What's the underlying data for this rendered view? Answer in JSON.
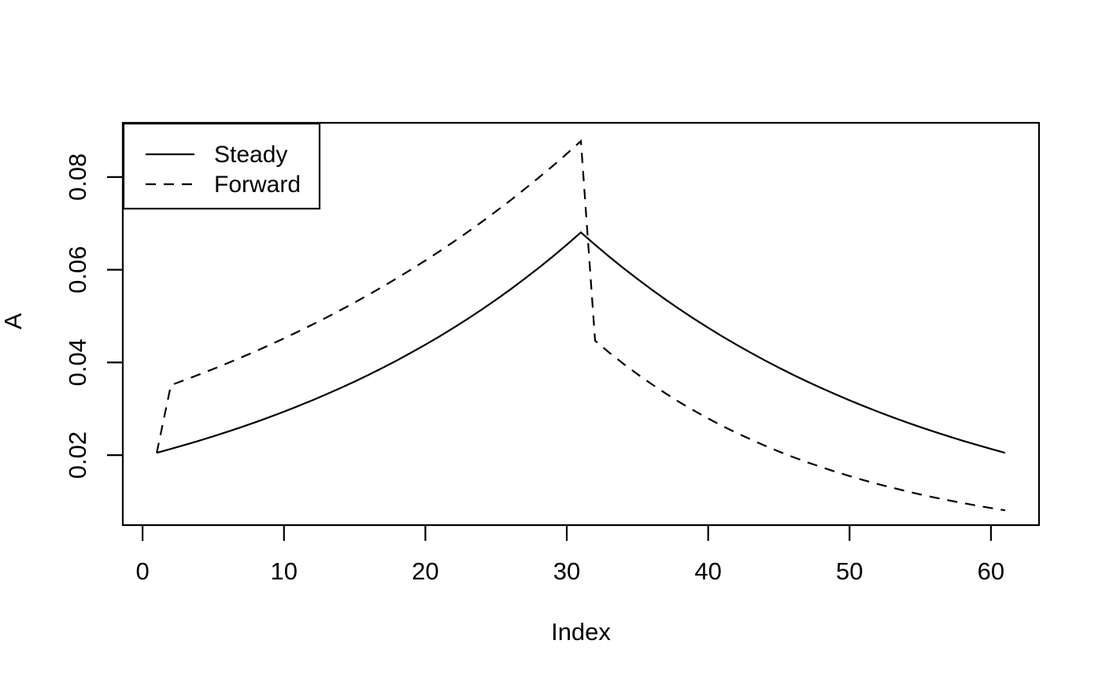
{
  "figure": {
    "background_color": "#ffffff",
    "foreground_color": "#000000"
  },
  "chart_data": {
    "type": "line",
    "title": "",
    "xlabel": "Index",
    "ylabel": "A",
    "grid": false,
    "xlim": [
      -1.4,
      63.4
    ],
    "ylim": [
      0.0049,
      0.0917
    ],
    "xticks": [
      0,
      10,
      20,
      30,
      40,
      50,
      60
    ],
    "xtick_labels": [
      "0",
      "10",
      "20",
      "30",
      "40",
      "50",
      "60"
    ],
    "yticks": [
      0.02,
      0.04,
      0.06,
      0.08
    ],
    "ytick_labels": [
      "0.02",
      "0.04",
      "0.06",
      "0.08"
    ],
    "legend": {
      "position": "topleft",
      "entries": [
        {
          "label": "Steady",
          "line_style": "solid"
        },
        {
          "label": "Forward",
          "line_style": "dashed"
        }
      ]
    },
    "x": [
      1,
      2,
      3,
      4,
      5,
      6,
      7,
      8,
      9,
      10,
      11,
      12,
      13,
      14,
      15,
      16,
      17,
      18,
      19,
      20,
      21,
      22,
      23,
      24,
      25,
      26,
      27,
      28,
      29,
      30,
      31,
      32,
      33,
      34,
      35,
      36,
      37,
      38,
      39,
      40,
      41,
      42,
      43,
      44,
      45,
      46,
      47,
      48,
      49,
      50,
      51,
      52,
      53,
      54,
      55,
      56,
      57,
      58,
      59,
      60,
      61
    ],
    "series": [
      {
        "name": "Steady",
        "style": "solid",
        "color": "#000000",
        "values": [
          0.0205,
          0.02134,
          0.02221,
          0.02311,
          0.02406,
          0.02504,
          0.02606,
          0.02712,
          0.02823,
          0.02938,
          0.03058,
          0.03183,
          0.03313,
          0.03448,
          0.03589,
          0.03735,
          0.03888,
          0.04046,
          0.04211,
          0.04383,
          0.04562,
          0.04748,
          0.04942,
          0.05144,
          0.05354,
          0.05572,
          0.058,
          0.06036,
          0.06282,
          0.06539,
          0.06806,
          0.06539,
          0.06282,
          0.06036,
          0.058,
          0.05572,
          0.05354,
          0.05144,
          0.04942,
          0.04748,
          0.04562,
          0.04383,
          0.04211,
          0.04046,
          0.03888,
          0.03735,
          0.03589,
          0.03448,
          0.03313,
          0.03183,
          0.03058,
          0.02938,
          0.02823,
          0.02712,
          0.02606,
          0.02504,
          0.02406,
          0.02311,
          0.02221,
          0.02134,
          0.0205
        ]
      },
      {
        "name": "Forward",
        "style": "dashed",
        "color": "#000000",
        "values": [
          0.0205,
          0.0351,
          0.03623,
          0.03739,
          0.03859,
          0.03983,
          0.04111,
          0.04243,
          0.04379,
          0.0452,
          0.04665,
          0.04815,
          0.04969,
          0.05129,
          0.05293,
          0.05463,
          0.05639,
          0.0582,
          0.06006,
          0.06199,
          0.06398,
          0.06604,
          0.06816,
          0.07034,
          0.0726,
          0.07493,
          0.07734,
          0.07982,
          0.08238,
          0.08503,
          0.08776,
          0.0447,
          0.04214,
          0.03973,
          0.03746,
          0.03532,
          0.0333,
          0.03139,
          0.0296,
          0.0279,
          0.02631,
          0.0248,
          0.02339,
          0.02205,
          0.02079,
          0.0196,
          0.01848,
          0.01742,
          0.01642,
          0.01548,
          0.0146,
          0.01376,
          0.01298,
          0.01223,
          0.01153,
          0.01087,
          0.01025,
          0.00967,
          0.00911,
          0.00859,
          0.0081
        ]
      }
    ]
  }
}
